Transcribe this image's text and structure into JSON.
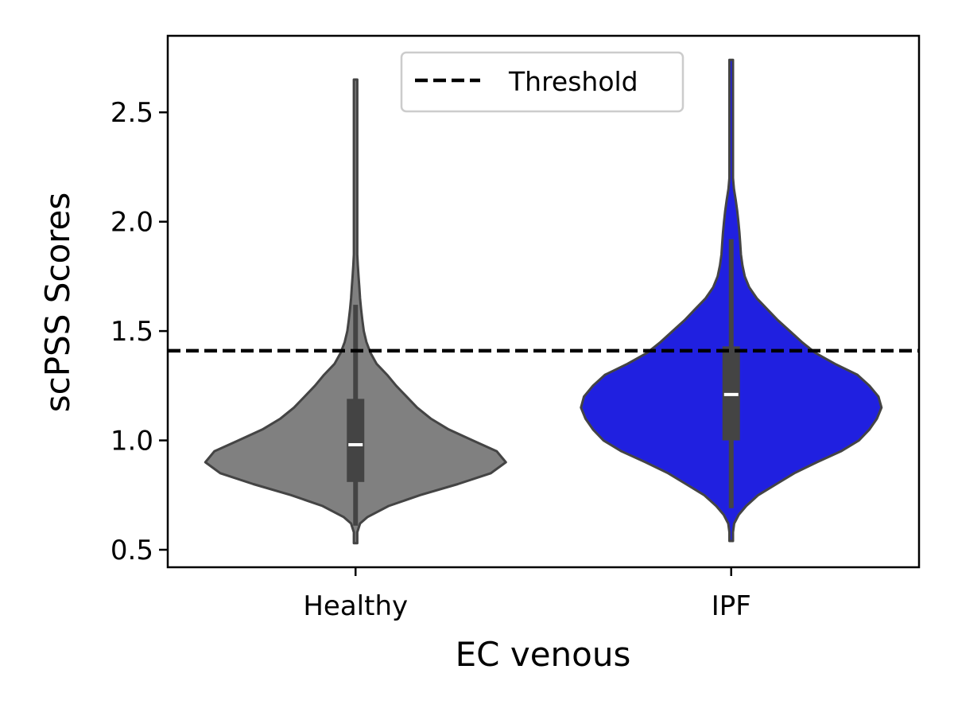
{
  "chart_data": {
    "type": "violin",
    "xlabel": "EC venous",
    "ylabel": "scPSS Scores",
    "ylim": [
      0.42,
      2.85
    ],
    "yticks": [
      0.5,
      1.0,
      1.5,
      2.0,
      2.5
    ],
    "ytick_labels": [
      "0.5",
      "1.0",
      "1.5",
      "2.0",
      "2.5"
    ],
    "categories": [
      "Healthy",
      "IPF"
    ],
    "threshold": {
      "name": "Threshold",
      "value": 1.41,
      "style": "dashed",
      "color": "#000000"
    },
    "legend": {
      "placement": "top-center",
      "entries": [
        "Threshold"
      ]
    },
    "grid": false,
    "series": [
      {
        "category": "Healthy",
        "fill": "#808080",
        "min": 0.53,
        "whisker_low": 0.61,
        "q1": 0.81,
        "median": 0.98,
        "q3": 1.19,
        "whisker_high": 1.62,
        "max": 2.65,
        "density": [
          [
            0.53,
            0.0
          ],
          [
            0.55,
            0.005
          ],
          [
            0.58,
            0.01
          ],
          [
            0.62,
            0.03
          ],
          [
            0.65,
            0.08
          ],
          [
            0.7,
            0.22
          ],
          [
            0.75,
            0.43
          ],
          [
            0.8,
            0.68
          ],
          [
            0.85,
            0.9
          ],
          [
            0.9,
            1.0
          ],
          [
            0.95,
            0.94
          ],
          [
            1.0,
            0.78
          ],
          [
            1.05,
            0.62
          ],
          [
            1.1,
            0.5
          ],
          [
            1.15,
            0.41
          ],
          [
            1.2,
            0.34
          ],
          [
            1.25,
            0.27
          ],
          [
            1.3,
            0.21
          ],
          [
            1.35,
            0.14
          ],
          [
            1.4,
            0.1
          ],
          [
            1.45,
            0.072
          ],
          [
            1.5,
            0.055
          ],
          [
            1.55,
            0.045
          ],
          [
            1.6,
            0.037
          ],
          [
            1.65,
            0.03
          ],
          [
            1.7,
            0.025
          ],
          [
            1.75,
            0.02
          ],
          [
            1.8,
            0.015
          ],
          [
            1.85,
            0.011
          ],
          [
            1.9,
            0.008
          ],
          [
            2.0,
            0.006
          ],
          [
            2.2,
            0.005
          ],
          [
            2.4,
            0.004
          ],
          [
            2.6,
            0.003
          ],
          [
            2.65,
            0.0
          ]
        ]
      },
      {
        "category": "IPF",
        "fill": "#2020e0",
        "min": 0.54,
        "whisker_low": 0.69,
        "q1": 1.0,
        "median": 1.21,
        "q3": 1.43,
        "whisker_high": 1.92,
        "max": 2.74,
        "density": [
          [
            0.54,
            0.0
          ],
          [
            0.58,
            0.01
          ],
          [
            0.62,
            0.02
          ],
          [
            0.66,
            0.05
          ],
          [
            0.7,
            0.1
          ],
          [
            0.75,
            0.18
          ],
          [
            0.8,
            0.3
          ],
          [
            0.85,
            0.42
          ],
          [
            0.9,
            0.57
          ],
          [
            0.95,
            0.73
          ],
          [
            1.0,
            0.85
          ],
          [
            1.05,
            0.92
          ],
          [
            1.1,
            0.97
          ],
          [
            1.15,
            1.0
          ],
          [
            1.2,
            0.98
          ],
          [
            1.25,
            0.92
          ],
          [
            1.3,
            0.84
          ],
          [
            1.35,
            0.69
          ],
          [
            1.4,
            0.56
          ],
          [
            1.45,
            0.47
          ],
          [
            1.5,
            0.39
          ],
          [
            1.55,
            0.31
          ],
          [
            1.6,
            0.24
          ],
          [
            1.65,
            0.17
          ],
          [
            1.7,
            0.12
          ],
          [
            1.75,
            0.09
          ],
          [
            1.8,
            0.075
          ],
          [
            1.85,
            0.065
          ],
          [
            1.9,
            0.06
          ],
          [
            1.95,
            0.055
          ],
          [
            2.0,
            0.048
          ],
          [
            2.05,
            0.04
          ],
          [
            2.1,
            0.03
          ],
          [
            2.15,
            0.018
          ],
          [
            2.2,
            0.012
          ],
          [
            2.3,
            0.008
          ],
          [
            2.5,
            0.005
          ],
          [
            2.7,
            0.003
          ],
          [
            2.74,
            0.0
          ]
        ]
      }
    ]
  }
}
